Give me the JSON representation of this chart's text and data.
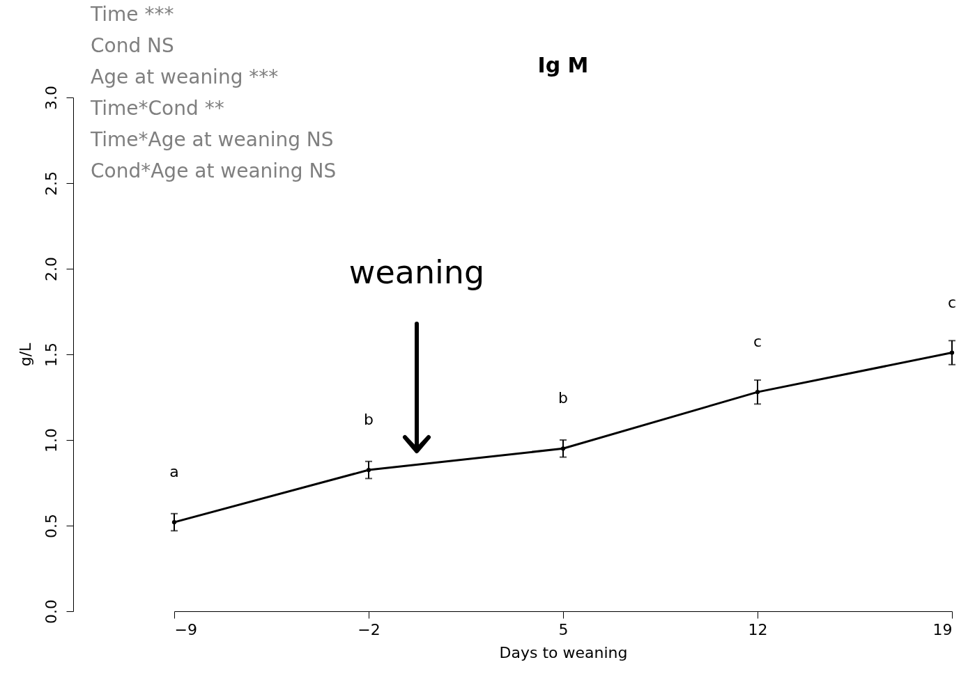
{
  "chart_data": {
    "type": "line",
    "title": "Ig M",
    "xlabel": "Days to weaning",
    "ylabel": "g/L",
    "x": [
      -9,
      -2,
      5,
      12,
      19
    ],
    "values": [
      0.52,
      0.825,
      0.95,
      1.28,
      1.51
    ],
    "errors": [
      0.05,
      0.05,
      0.05,
      0.07,
      0.07
    ],
    "color": "#000000",
    "marker": "circle",
    "line_style": "solid",
    "grid": false,
    "xlim": [
      -9,
      19
    ],
    "xticks": [
      -9,
      -2,
      5,
      12,
      19
    ],
    "ylim": [
      0,
      3
    ],
    "yticks": [
      {
        "value": 0,
        "label": "0.0"
      },
      0.5,
      {
        "value": 1,
        "label": "1.0"
      },
      1.5,
      {
        "value": 2,
        "label": "2.0"
      },
      2.5,
      {
        "value": 3,
        "label": "3.0"
      }
    ],
    "annotations": [
      "Time ***",
      "Cond NS",
      "Age at weaning ***",
      "Time*Cond **",
      "Time*Age at weaning NS",
      "Cond*Age at weaning  NS",
      "a",
      "b",
      "b",
      "c",
      "c",
      "weaning"
    ]
  }
}
